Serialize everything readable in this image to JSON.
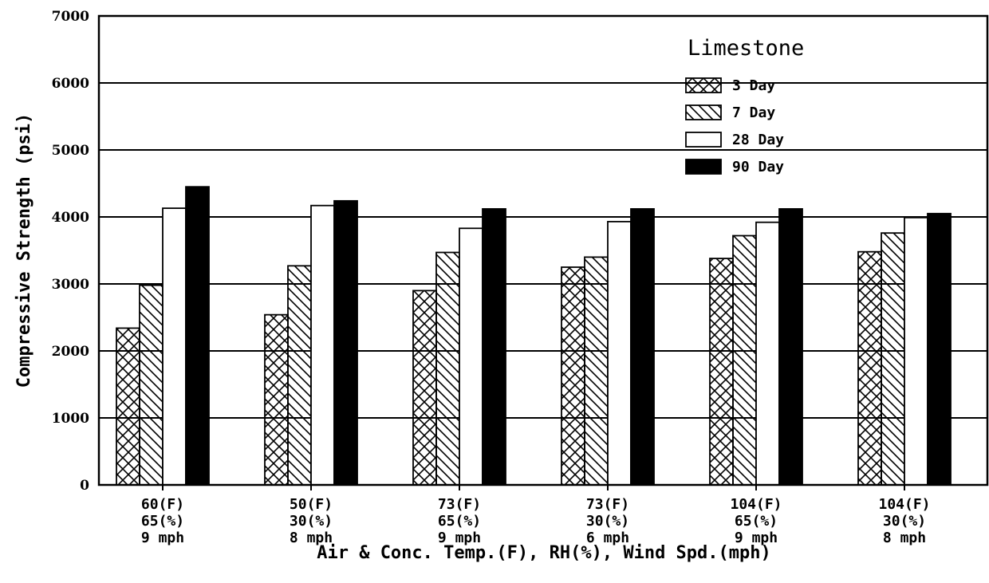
{
  "chart_data": {
    "type": "bar",
    "title": "",
    "xlabel": "Air & Conc. Temp.(F), RH(%), Wind Spd.(mph)",
    "ylabel": "Compressive Strength (psi)",
    "ylim": [
      0,
      7000
    ],
    "yticks": [
      0,
      1000,
      2000,
      3000,
      4000,
      5000,
      6000,
      7000
    ],
    "grid": true,
    "legend_position": "top-right",
    "legend_title": "Limestone",
    "categories": [
      [
        "60(F)",
        "65(%)",
        "9 mph"
      ],
      [
        "50(F)",
        "30(%)",
        "8 mph"
      ],
      [
        "73(F)",
        "65(%)",
        "9 mph"
      ],
      [
        "73(F)",
        "30(%)",
        "6 mph"
      ],
      [
        "104(F)",
        "65(%)",
        "9 mph"
      ],
      [
        "104(F)",
        "30(%)",
        "8 mph"
      ]
    ],
    "series": [
      {
        "name": "3 Day",
        "pattern": "crosshatch",
        "values": [
          2340,
          2540,
          2900,
          3250,
          3380,
          3480
        ]
      },
      {
        "name": "7 Day",
        "pattern": "diagonal",
        "values": [
          2980,
          3270,
          3470,
          3400,
          3720,
          3760
        ]
      },
      {
        "name": "28 Day",
        "pattern": "white",
        "values": [
          4130,
          4170,
          3830,
          3930,
          3920,
          3990
        ]
      },
      {
        "name": "90 Day",
        "pattern": "solid",
        "values": [
          4450,
          4240,
          4120,
          4120,
          4120,
          4050
        ]
      }
    ]
  }
}
